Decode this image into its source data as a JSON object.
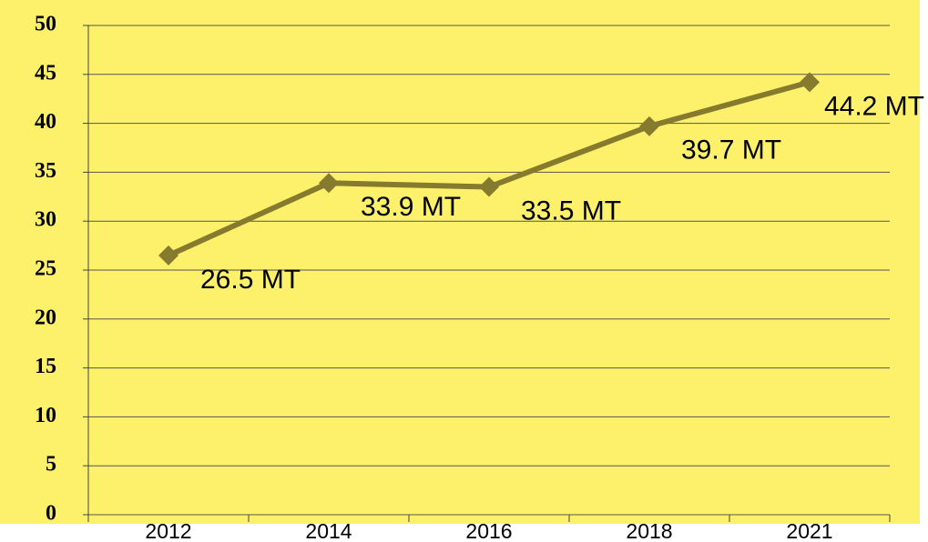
{
  "chart_data": {
    "type": "line",
    "categories": [
      "2012",
      "2014",
      "2016",
      "2018",
      "2021"
    ],
    "series": [
      {
        "color": "#857a2e",
        "values": [
          26.5,
          33.9,
          33.5,
          39.7,
          44.2
        ],
        "value_labels": [
          "26.5 MT",
          "33.9 MT",
          "33.5 MT",
          "39.7 MT",
          "44.2 MT"
        ]
      }
    ],
    "ylim": [
      0,
      50
    ],
    "yticks": [
      0,
      5,
      10,
      15,
      20,
      25,
      30,
      35,
      40,
      45,
      50
    ],
    "grid": true,
    "background": "#fdf16b"
  }
}
